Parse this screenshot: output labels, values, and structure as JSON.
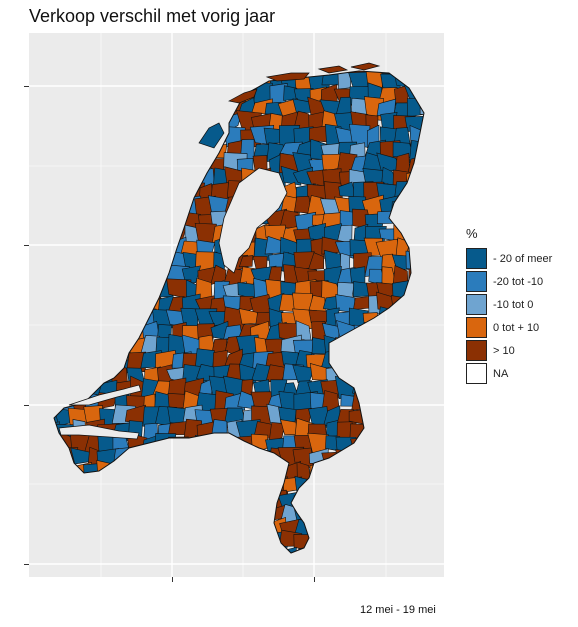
{
  "title": "Verkoop verschil met vorig jaar",
  "caption": "12 mei - 19 mei",
  "legend": {
    "title": "%",
    "items": [
      {
        "label": "- 20 of meer",
        "color": "#065a8c"
      },
      {
        "label": "-20 tot -10",
        "color": "#2b7cbc"
      },
      {
        "label": "-10 tot 0",
        "color": "#6fa4d0"
      },
      {
        "label": "0 tot + 10",
        "color": "#d9660e"
      },
      {
        "label": "> 10",
        "color": "#8b3003"
      },
      {
        "label": "NA",
        "color": "#ffffff"
      }
    ]
  },
  "colors": {
    "panel": "#ebebeb",
    "grid": "#ffffff",
    "border": "#111111"
  }
}
